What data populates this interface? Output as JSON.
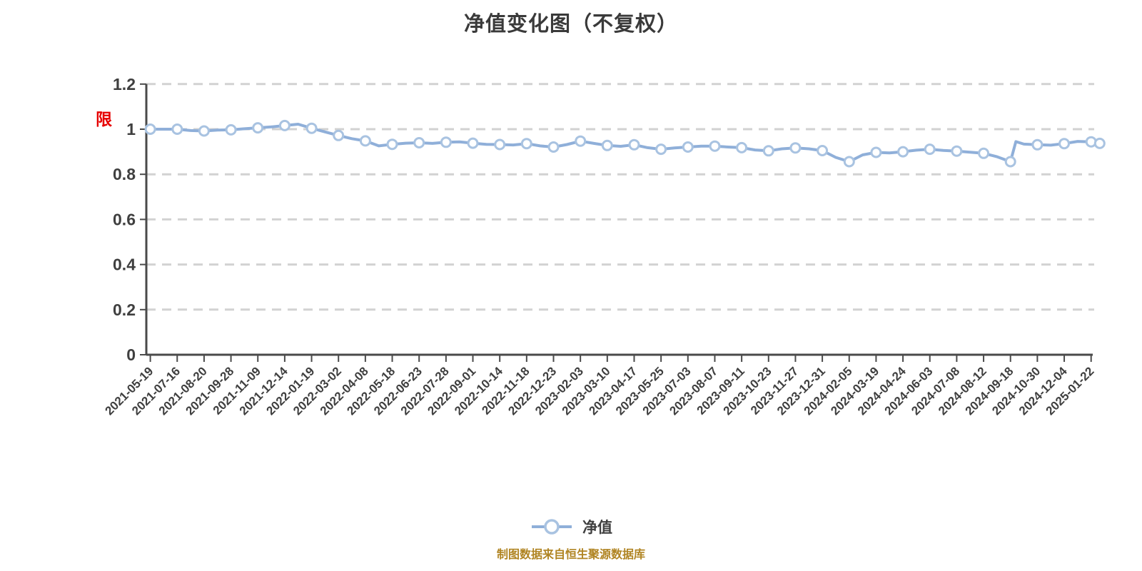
{
  "title": "净值变化图（不复权）",
  "y_axis_red_label": "限",
  "legend": {
    "label": "净值"
  },
  "source_note": "制图数据来自恒生聚源数据库",
  "chart_data": {
    "type": "line",
    "title": "净值变化图（不复权）",
    "series_name": "净值",
    "legend_position": "bottom",
    "grid": "dashed-horizontal",
    "ylim": [
      0,
      1.2
    ],
    "y_ticks": [
      {
        "value": 0,
        "label": "0"
      },
      {
        "value": 0.2,
        "label": "0.2"
      },
      {
        "value": 0.4,
        "label": "0.4"
      },
      {
        "value": 0.6,
        "label": "0.6"
      },
      {
        "value": 0.8,
        "label": "0.8"
      },
      {
        "value": 1.0,
        "label": "1"
      },
      {
        "value": 1.2,
        "label": "1.2"
      }
    ],
    "categories": [
      "2021-05-19",
      "2021-07-16",
      "2021-08-20",
      "2021-09-28",
      "2021-11-09",
      "2021-12-14",
      "2022-01-19",
      "2022-03-02",
      "2022-04-08",
      "2022-05-18",
      "2022-06-23",
      "2022-07-28",
      "2022-09-01",
      "2022-10-14",
      "2022-11-18",
      "2022-12-23",
      "2023-02-03",
      "2023-03-10",
      "2023-04-17",
      "2023-05-25",
      "2023-07-03",
      "2023-08-07",
      "2023-09-11",
      "2023-10-23",
      "2023-11-27",
      "2023-12-31",
      "2024-02-05",
      "2024-03-19",
      "2024-04-24",
      "2024-06-03",
      "2024-07-08",
      "2024-08-12",
      "2024-09-18",
      "2024-10-30",
      "2024-12-04",
      "2025-01-22"
    ],
    "values": [
      1.0,
      1.0,
      0.992,
      0.997,
      1.006,
      1.016,
      1.004,
      0.972,
      0.948,
      0.933,
      0.94,
      0.942,
      0.938,
      0.932,
      0.936,
      0.921,
      0.947,
      0.928,
      0.931,
      0.911,
      0.921,
      0.925,
      0.918,
      0.904,
      0.917,
      0.905,
      0.856,
      0.897,
      0.9,
      0.911,
      0.903,
      0.893,
      0.856,
      0.931,
      0.936,
      0.944
    ],
    "points": [
      [
        0,
        1.0,
        1
      ],
      [
        0.5,
        1.0,
        0
      ],
      [
        1,
        1.0,
        1
      ],
      [
        1.5,
        0.994,
        0
      ],
      [
        2,
        0.992,
        1
      ],
      [
        2.5,
        0.996,
        0
      ],
      [
        3,
        0.997,
        1
      ],
      [
        3.5,
        1.002,
        0
      ],
      [
        4,
        1.006,
        1
      ],
      [
        4.5,
        1.01,
        0
      ],
      [
        5,
        1.016,
        1
      ],
      [
        5.5,
        1.022,
        0
      ],
      [
        6,
        1.004,
        1
      ],
      [
        6.5,
        0.988,
        0
      ],
      [
        7,
        0.972,
        1
      ],
      [
        7.5,
        0.958,
        0
      ],
      [
        8,
        0.948,
        1
      ],
      [
        8.5,
        0.926,
        0
      ],
      [
        9,
        0.933,
        1
      ],
      [
        9.5,
        0.938,
        0
      ],
      [
        10,
        0.94,
        1
      ],
      [
        10.5,
        0.937,
        0
      ],
      [
        11,
        0.942,
        1
      ],
      [
        11.5,
        0.944,
        0
      ],
      [
        12,
        0.938,
        1
      ],
      [
        12.5,
        0.933,
        0
      ],
      [
        13,
        0.932,
        1
      ],
      [
        13.5,
        0.93,
        0
      ],
      [
        14,
        0.936,
        1
      ],
      [
        14.5,
        0.926,
        0
      ],
      [
        15,
        0.921,
        1
      ],
      [
        15.5,
        0.932,
        0
      ],
      [
        16,
        0.947,
        1
      ],
      [
        16.5,
        0.937,
        0
      ],
      [
        17,
        0.928,
        1
      ],
      [
        17.5,
        0.924,
        0
      ],
      [
        18,
        0.931,
        1
      ],
      [
        18.5,
        0.918,
        0
      ],
      [
        19,
        0.911,
        1
      ],
      [
        19.5,
        0.917,
        0
      ],
      [
        20,
        0.921,
        1
      ],
      [
        20.5,
        0.925,
        0
      ],
      [
        21,
        0.925,
        1
      ],
      [
        21.5,
        0.921,
        0
      ],
      [
        22,
        0.918,
        1
      ],
      [
        22.5,
        0.908,
        0
      ],
      [
        23,
        0.904,
        1
      ],
      [
        23.5,
        0.913,
        0
      ],
      [
        24,
        0.917,
        1
      ],
      [
        24.5,
        0.913,
        0
      ],
      [
        25,
        0.905,
        1
      ],
      [
        25.5,
        0.875,
        0
      ],
      [
        26,
        0.856,
        1
      ],
      [
        26.5,
        0.886,
        0
      ],
      [
        27,
        0.897,
        1
      ],
      [
        27.5,
        0.895,
        0
      ],
      [
        28,
        0.9,
        1
      ],
      [
        28.5,
        0.907,
        0
      ],
      [
        29,
        0.911,
        1
      ],
      [
        29.5,
        0.906,
        0
      ],
      [
        30,
        0.903,
        1
      ],
      [
        30.5,
        0.898,
        0
      ],
      [
        31,
        0.893,
        1
      ],
      [
        31.5,
        0.878,
        0
      ],
      [
        32,
        0.856,
        1
      ],
      [
        32.2,
        0.945,
        0
      ],
      [
        32.5,
        0.934,
        0
      ],
      [
        33,
        0.931,
        1
      ],
      [
        33.5,
        0.929,
        0
      ],
      [
        34,
        0.936,
        1
      ],
      [
        34.5,
        0.946,
        0
      ],
      [
        35,
        0.944,
        1
      ],
      [
        35.32,
        0.937,
        1
      ]
    ],
    "colors": {
      "line": "#8fafd9",
      "marker_fill": "#ffffff",
      "marker_stroke": "#a9c3e1",
      "grid": "#d2d2d2",
      "axis": "#4a4a4a",
      "tick_label": "#3f3f3f",
      "title": "#3a3a3a",
      "source": "#b08422",
      "red_label": "#e60000"
    }
  }
}
